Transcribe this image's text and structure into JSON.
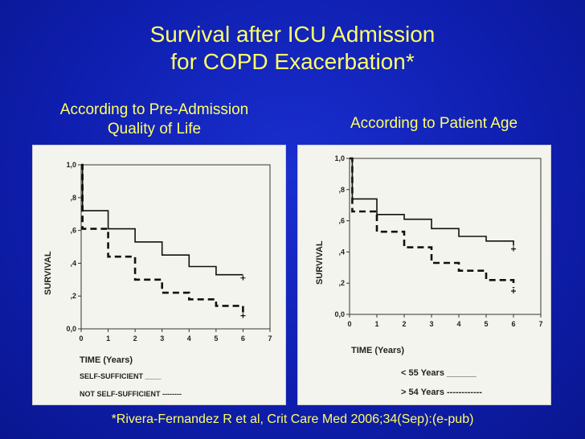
{
  "slide": {
    "title_line1": "Survival after ICU Admission",
    "title_line2": "for COPD Exacerbation*",
    "left_heading_line1": "According to Pre-Admission",
    "left_heading_line2": "Quality of Life",
    "right_heading": "According to Patient Age",
    "citation": "*Rivera-Fernandez R et al, Crit Care Med 2006;34(Sep):(e-pub)",
    "background_color": "#1020c0",
    "text_color": "#ffff66"
  },
  "chart_data": [
    {
      "type": "line",
      "step": true,
      "title": "",
      "xlabel": "TIME (Years)",
      "ylabel": "SURVIVAL",
      "xlim": [
        0,
        7
      ],
      "ylim": [
        0,
        1
      ],
      "x_ticks": [
        "0",
        "1",
        "2",
        "3",
        "4",
        "5",
        "6",
        "7"
      ],
      "y_ticks": [
        "0,0",
        ",2",
        ",4",
        ",6",
        ",8",
        "1,0"
      ],
      "grid": false,
      "series": [
        {
          "name": "SELF-SUFFICIENT",
          "legend_suffix": "____",
          "style": "solid",
          "x": [
            0,
            0.05,
            0.05,
            1,
            1,
            2,
            2,
            3,
            3,
            4,
            4,
            5,
            5,
            6
          ],
          "y": [
            1.0,
            1.0,
            0.72,
            0.72,
            0.61,
            0.61,
            0.53,
            0.53,
            0.45,
            0.45,
            0.38,
            0.38,
            0.33,
            0.33
          ]
        },
        {
          "name": "NOT SELF-SUFFICIENT",
          "legend_suffix": "--------",
          "style": "dashed",
          "x": [
            0,
            0.05,
            0.05,
            1,
            1,
            2,
            2,
            3,
            3,
            4,
            4,
            5,
            5,
            6,
            6
          ],
          "y": [
            1.0,
            1.0,
            0.61,
            0.61,
            0.44,
            0.44,
            0.3,
            0.3,
            0.22,
            0.22,
            0.18,
            0.18,
            0.14,
            0.14,
            0.1
          ]
        }
      ]
    },
    {
      "type": "line",
      "step": true,
      "title": "",
      "xlabel": "TIME (Years)",
      "ylabel": "SURVIVAL",
      "xlim": [
        0,
        7
      ],
      "ylim": [
        0,
        1
      ],
      "x_ticks": [
        "0",
        "1",
        "2",
        "3",
        "4",
        "5",
        "6",
        "7"
      ],
      "y_ticks": [
        "0,0",
        ",2",
        ",4",
        ",6",
        ",8",
        "1,0"
      ],
      "grid": false,
      "series": [
        {
          "name": "< 55  Years",
          "legend_suffix": "______",
          "style": "solid",
          "x": [
            0,
            0.1,
            0.1,
            1,
            1,
            2,
            2,
            3,
            3,
            4,
            4,
            5,
            5,
            6,
            6
          ],
          "y": [
            1.0,
            1.0,
            0.74,
            0.74,
            0.64,
            0.64,
            0.61,
            0.61,
            0.55,
            0.55,
            0.5,
            0.5,
            0.47,
            0.47,
            0.44
          ]
        },
        {
          "name": "> 54 Years",
          "legend_suffix": "------------",
          "style": "dashed",
          "x": [
            0,
            0.1,
            0.1,
            1,
            1,
            2,
            2,
            3,
            3,
            4,
            4,
            5,
            5,
            6,
            6
          ],
          "y": [
            1.0,
            1.0,
            0.66,
            0.66,
            0.53,
            0.53,
            0.43,
            0.43,
            0.33,
            0.33,
            0.28,
            0.28,
            0.22,
            0.22,
            0.17
          ]
        }
      ]
    }
  ]
}
